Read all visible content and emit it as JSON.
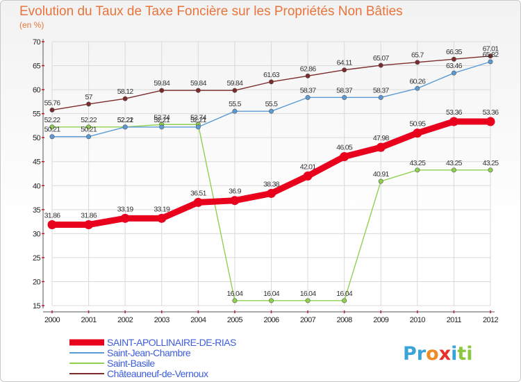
{
  "chart_data": {
    "type": "line",
    "title": "Evolution du Taux de Taxe Foncière sur les Propriétés Non Bâties",
    "unit_label": "(en %)",
    "xlabel": "",
    "ylabel": "(en %)",
    "ylim": [
      15,
      70
    ],
    "yticks": [
      15,
      20,
      25,
      30,
      35,
      40,
      45,
      50,
      55,
      60,
      65,
      70
    ],
    "categories": [
      "2000",
      "2001",
      "2002",
      "2003",
      "2004",
      "2005",
      "2006",
      "2007",
      "2008",
      "2009",
      "2010",
      "2011",
      "2012"
    ],
    "grid": true,
    "series": [
      {
        "name": "SAINT-APOLLINAIRE-DE-RIAS",
        "color": "#e8001c",
        "values": [
          31.86,
          31.86,
          33.19,
          33.19,
          36.51,
          36.9,
          38.38,
          42.01,
          46.05,
          47.98,
          50.95,
          53.36,
          53.36
        ],
        "labels": [
          "31.86",
          "31.86",
          "33.19",
          "33.19",
          "36.51",
          "36.9",
          "38.38",
          "42.01",
          "46.05",
          "47.98",
          "50.95",
          "53.36",
          "53.36"
        ]
      },
      {
        "name": "Saint-Jean-Chambre",
        "color": "#5b9bd5",
        "values": [
          50.21,
          50.21,
          52.21,
          52.21,
          52.21,
          55.5,
          55.5,
          58.37,
          58.37,
          58.37,
          60.26,
          63.46,
          65.82
        ],
        "labels": [
          "50.21",
          "50.21",
          "52.21",
          "52.21",
          "52.21",
          "55.5",
          "55.5",
          "58.37",
          "58.37",
          "58.37",
          "60.26",
          "63.46",
          "65.82"
        ]
      },
      {
        "name": "Saint-Basile",
        "color": "#8fd14f",
        "values": [
          52.22,
          52.22,
          52.22,
          52.74,
          52.74,
          16.04,
          16.04,
          16.04,
          16.04,
          40.91,
          43.25,
          43.25,
          43.25
        ],
        "labels": [
          "52.22",
          "52.22",
          "52.22",
          "52.74",
          "52.74",
          "16.04",
          "16.04",
          "16.04",
          "16.04",
          "40.91",
          "43.25",
          "43.25",
          "43.25"
        ]
      },
      {
        "name": "Châteauneuf-de-Vernoux",
        "color": "#7b2b2b",
        "values": [
          55.76,
          57,
          58.12,
          59.84,
          59.84,
          59.84,
          61.63,
          62.86,
          64.11,
          65.07,
          65.7,
          66.35,
          67.01
        ],
        "labels": [
          "55.76",
          "57",
          "58.12",
          "59.84",
          "59.84",
          "59.84",
          "61.63",
          "62.86",
          "64.11",
          "65.07",
          "65.7",
          "66.35",
          "67.01"
        ]
      }
    ],
    "legend_position": "bottom-left"
  },
  "logo": {
    "text": "Proxiti",
    "letters": [
      {
        "ch": "P",
        "color": "#3aa3d8"
      },
      {
        "ch": "r",
        "color": "#3aa3d8"
      },
      {
        "ch": "o",
        "color": "#f08a24"
      },
      {
        "ch": "x",
        "color": "#e8302a"
      },
      {
        "ch": "i",
        "color": "#3aa3d8"
      },
      {
        "ch": "t",
        "color": "#8cc63f"
      },
      {
        "ch": "i",
        "color": "#8cc63f"
      }
    ]
  }
}
